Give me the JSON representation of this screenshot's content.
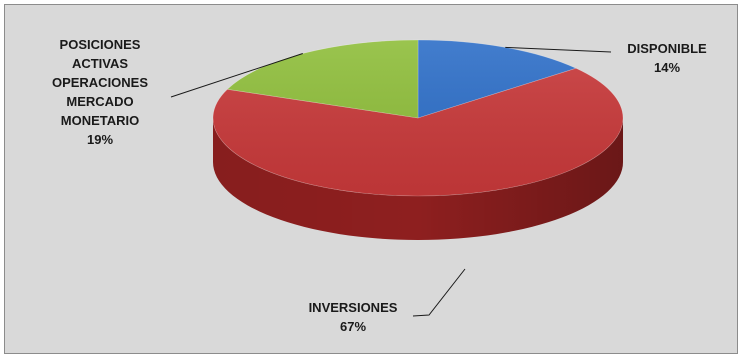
{
  "chart_data": {
    "type": "pie",
    "style": "3d",
    "title": "",
    "legend": "none",
    "slices": [
      {
        "name": "DISPONIBLE",
        "label_lines": [
          "DISPONIBLE"
        ],
        "percent_label": "14%",
        "value": 14,
        "color": "#2e6fc8",
        "side_color": "#1f4f94"
      },
      {
        "name": "INVERSIONES",
        "label_lines": [
          "INVERSIONES"
        ],
        "percent_label": "67%",
        "value": 67,
        "color": "#c8393a",
        "side_color": "#8e1f1f"
      },
      {
        "name": "POSICIONES ACTIVAS OPERACIONES MERCADO MONETARIO",
        "label_lines": [
          "POSICIONES",
          "ACTIVAS",
          "OPERACIONES",
          "MERCADO",
          "MONETARIO"
        ],
        "percent_label": "19%",
        "value": 19,
        "color": "#8fbe3b",
        "side_color": "#5f8a22"
      }
    ],
    "background_color": "#d9d9d9"
  }
}
